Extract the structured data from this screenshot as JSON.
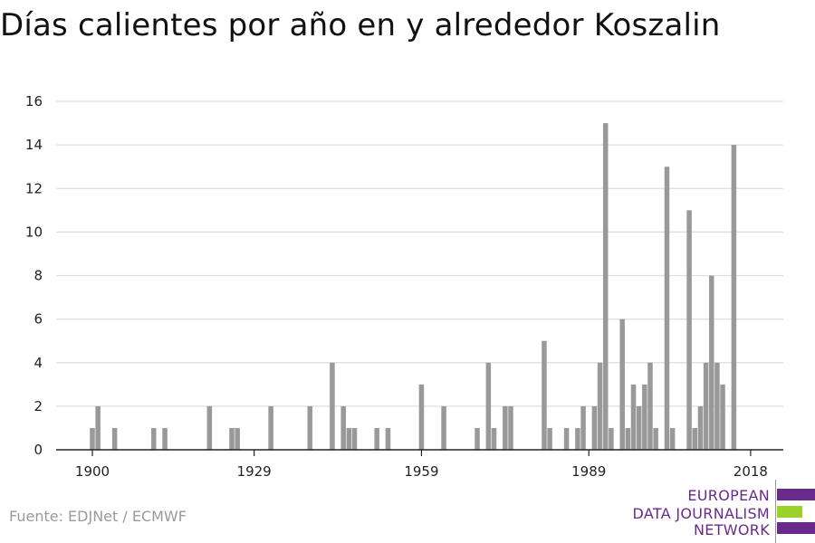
{
  "title": "Días calientes por año en y alrededor Koszalin",
  "source": "Fuente: EDJNet / ECMWF",
  "logo": {
    "line1": "EUROPEAN",
    "line2": "DATA JOURNALISM",
    "line3": "NETWORK",
    "colors": {
      "purple": "#6a2a8c",
      "green": "#9bd22a"
    }
  },
  "chart_data": {
    "type": "bar",
    "x": [
      1900,
      1901,
      1904,
      1911,
      1913,
      1921,
      1925,
      1926,
      1932,
      1939,
      1943,
      1945,
      1946,
      1947,
      1951,
      1953,
      1959,
      1963,
      1969,
      1971,
      1972,
      1974,
      1975,
      1981,
      1982,
      1985,
      1987,
      1988,
      1990,
      1991,
      1992,
      1993,
      1995,
      1996,
      1997,
      1998,
      1999,
      2000,
      2001,
      2003,
      2004,
      2007,
      2008,
      2009,
      2010,
      2011,
      2012,
      2013,
      2015
    ],
    "values": [
      1,
      2,
      1,
      1,
      1,
      2,
      1,
      1,
      2,
      2,
      4,
      2,
      1,
      1,
      1,
      1,
      3,
      2,
      1,
      4,
      1,
      2,
      2,
      5,
      1,
      1,
      1,
      2,
      2,
      4,
      15,
      1,
      6,
      1,
      3,
      2,
      3,
      4,
      1,
      13,
      1,
      11,
      1,
      2,
      4,
      8,
      4,
      3,
      14
    ],
    "xticks": [
      1900,
      1929,
      1959,
      1989,
      2018
    ],
    "ylim": [
      0,
      16
    ],
    "yticks": [
      0,
      2,
      4,
      6,
      8,
      10,
      12,
      14,
      16
    ],
    "grid": true,
    "bar_color": "#999999",
    "grid_color": "#dddddd",
    "xlabel": "",
    "ylabel": ""
  }
}
